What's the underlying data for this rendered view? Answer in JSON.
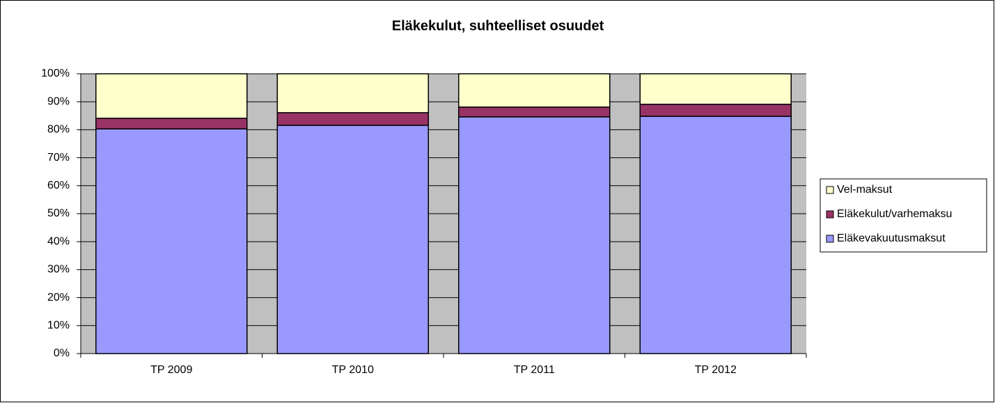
{
  "chart_data": {
    "type": "stacked_bar",
    "title": "Eläkekulut, suhteelliset osuudet",
    "categories": [
      "TP 2009",
      "TP 2010",
      "TP 2011",
      "TP 2012"
    ],
    "series": [
      {
        "name": "Eläkevakuutusmaksut",
        "color": "#9999ff",
        "values": [
          80.3,
          81.6,
          84.6,
          84.8
        ]
      },
      {
        "name": "Eläkekulut/varhemaksu",
        "color": "#993366",
        "values": [
          3.8,
          4.5,
          3.5,
          4.3
        ]
      },
      {
        "name": "Vel-maksut",
        "color": "#ffffcc",
        "values": [
          15.9,
          13.9,
          11.9,
          10.9
        ]
      }
    ],
    "ylim": [
      0,
      100
    ],
    "yticks": [
      {
        "value": 0,
        "label": "0%"
      },
      {
        "value": 10,
        "label": "10%"
      },
      {
        "value": 20,
        "label": "20%"
      },
      {
        "value": 30,
        "label": "30%"
      },
      {
        "value": 40,
        "label": "40%"
      },
      {
        "value": 50,
        "label": "50%"
      },
      {
        "value": 60,
        "label": "60%"
      },
      {
        "value": 70,
        "label": "70%"
      },
      {
        "value": 80,
        "label": "80%"
      },
      {
        "value": 90,
        "label": "90%"
      },
      {
        "value": 100,
        "label": "100%"
      }
    ],
    "grid": true,
    "legend": "right"
  }
}
